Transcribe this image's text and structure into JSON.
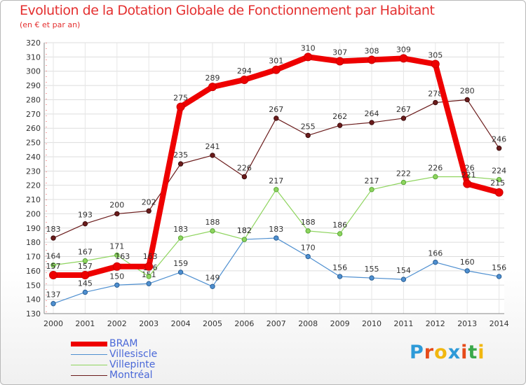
{
  "title": "Evolution de la Dotation Globale de Fonctionnement par Habitant",
  "subtitle": "(en € et par an)",
  "logo": {
    "letters": [
      "P",
      "r",
      "o",
      "x",
      "i",
      "t",
      "i"
    ],
    "colors": [
      "#2e9ad8",
      "#e64a19",
      "#f1b70f",
      "#2e9ad8",
      "#e64a19",
      "#3aa84a",
      "#f1b70f"
    ]
  },
  "chart_data": {
    "type": "line",
    "title": "Evolution de la Dotation Globale de Fonctionnement par Habitant",
    "subtitle": "(en € et par an)",
    "x": [
      "2000",
      "2001",
      "2002",
      "2003",
      "2004",
      "2005",
      "2006",
      "2007",
      "2008",
      "2009",
      "2010",
      "2011",
      "2012",
      "2013",
      "2014"
    ],
    "ylim": [
      130,
      320
    ],
    "yticks": [
      130,
      140,
      150,
      160,
      170,
      180,
      190,
      200,
      210,
      220,
      230,
      240,
      250,
      260,
      270,
      280,
      290,
      300,
      310,
      320
    ],
    "grid": true,
    "legend_position": "bottom-left",
    "series": [
      {
        "name": "Montréal",
        "color": "#6b1c1c",
        "values": [
          183,
          193,
          200,
          202,
          235,
          241,
          226,
          267,
          255,
          262,
          264,
          267,
          278,
          280,
          246
        ]
      },
      {
        "name": "Villesiscle",
        "color": "#4e8fd0",
        "values": [
          137,
          145,
          150,
          151,
          159,
          149,
          182,
          183,
          170,
          156,
          155,
          154,
          166,
          160,
          156
        ]
      },
      {
        "name": "Villepinte",
        "color": "#8ed45e",
        "values": [
          164,
          167,
          171,
          156,
          183,
          188,
          182,
          217,
          188,
          186,
          217,
          222,
          226,
          226,
          224
        ]
      },
      {
        "name": "BRAM",
        "color": "#ee0000",
        "values": [
          157,
          157,
          163,
          163,
          275,
          289,
          294,
          301,
          310,
          307,
          308,
          309,
          305,
          221,
          215
        ]
      }
    ],
    "legend": [
      "BRAM",
      "Villesiscle",
      "Villepinte",
      "Montréal"
    ]
  }
}
